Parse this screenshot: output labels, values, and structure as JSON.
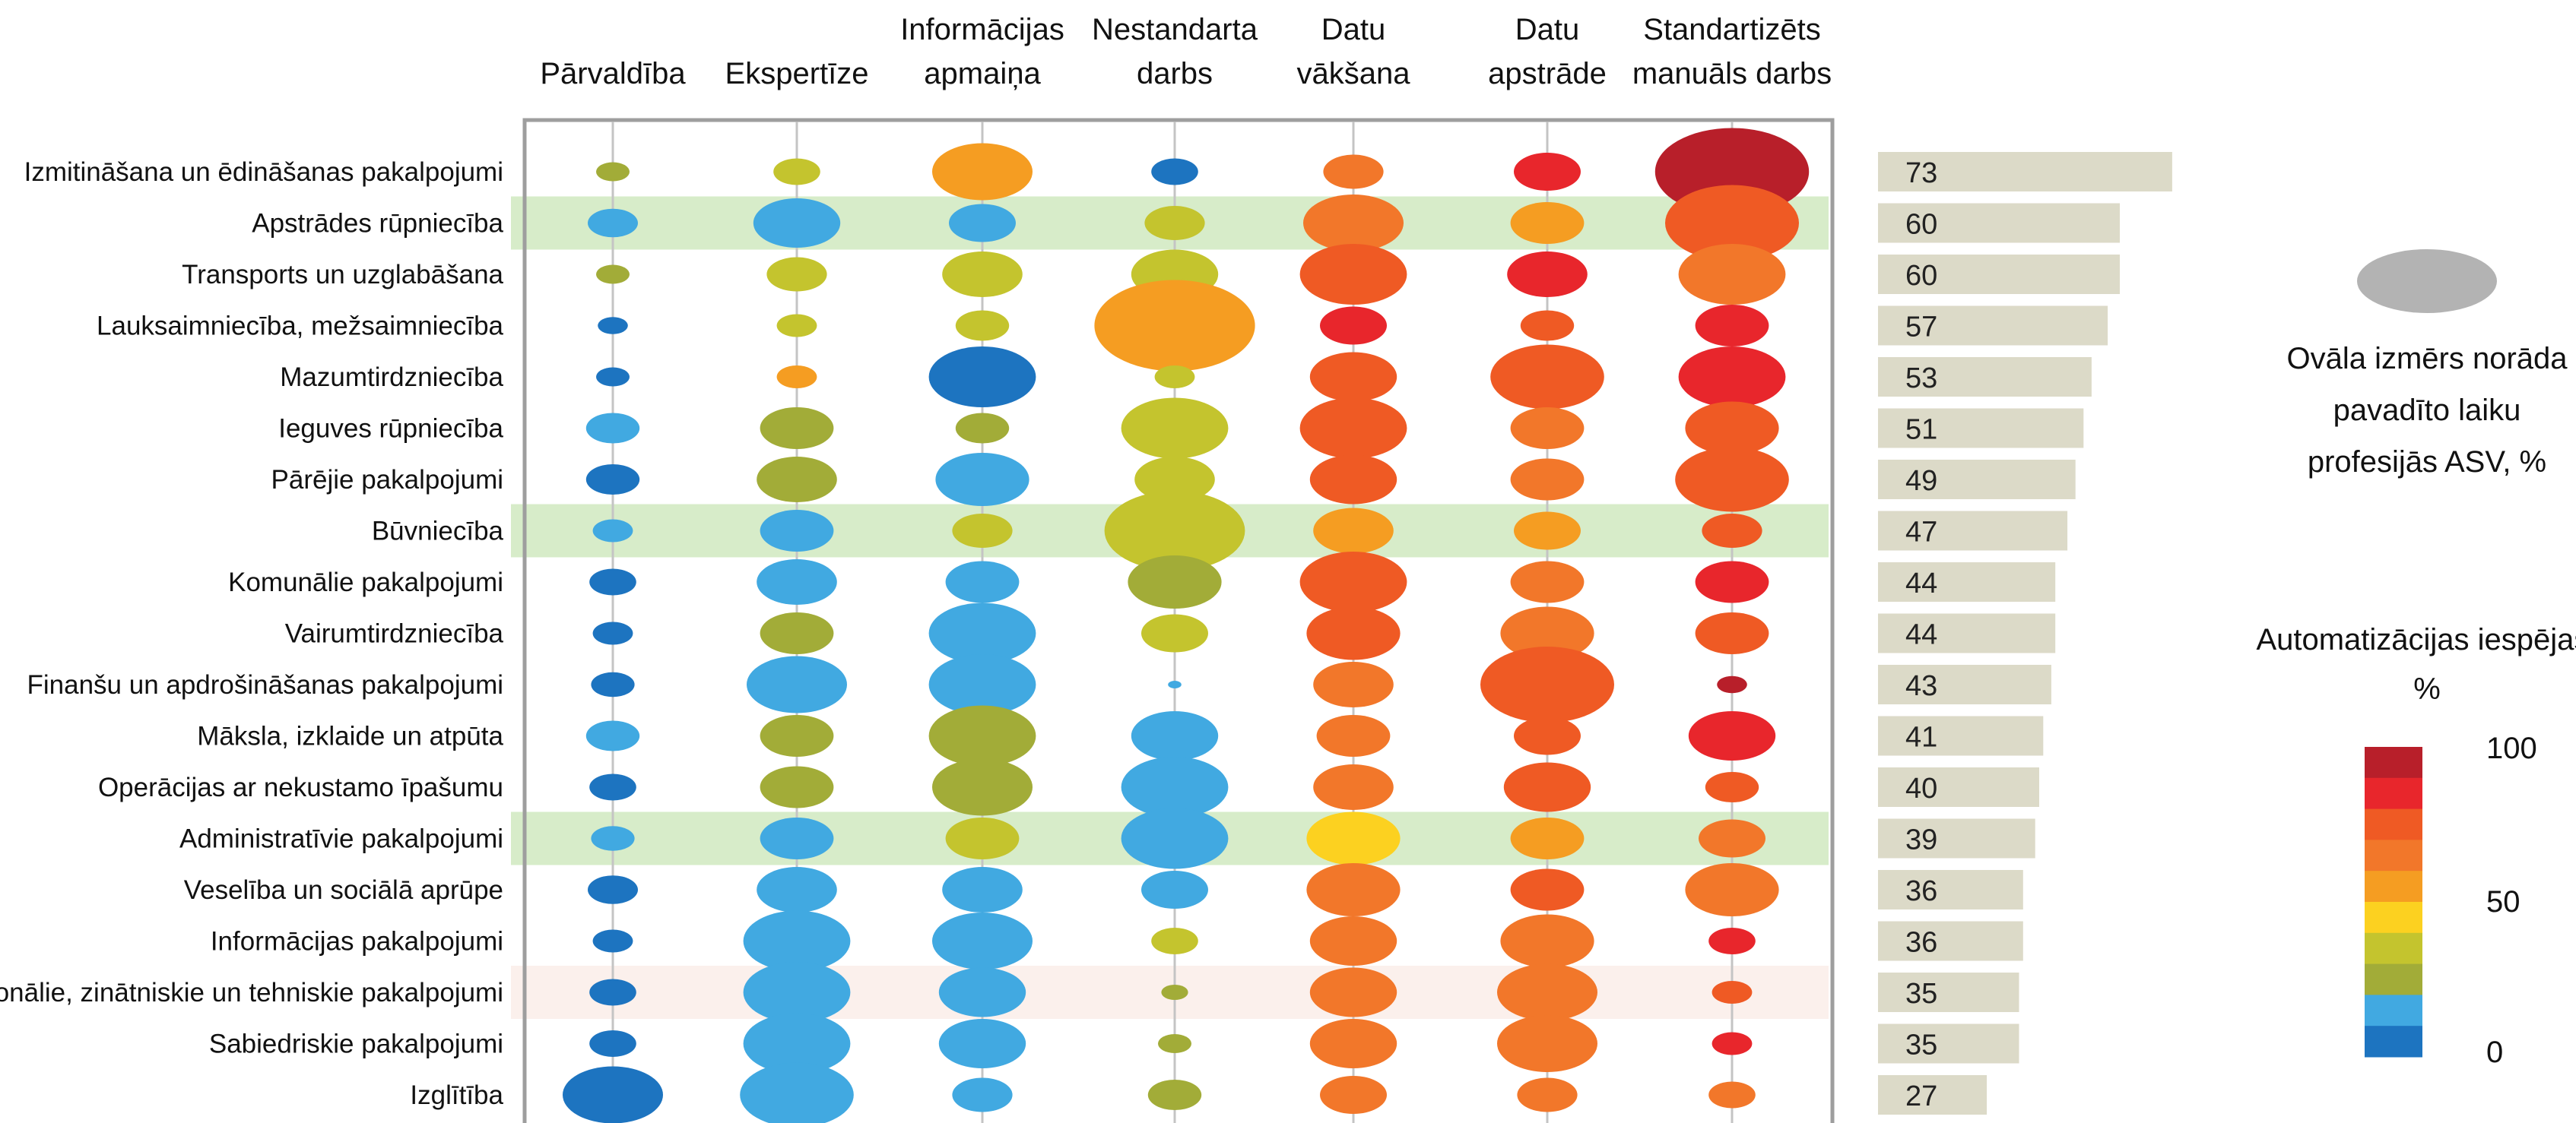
{
  "chart_data": {
    "type": "bubble-matrix",
    "columns": [
      {
        "line1": "",
        "line2": "Pārvaldība"
      },
      {
        "line1": "",
        "line2": "Ekspertīze"
      },
      {
        "line1": "Informācijas",
        "line2": "apmaiņa"
      },
      {
        "line1": "Nestandarta",
        "line2": "darbs"
      },
      {
        "line1": "Datu",
        "line2": "vākšana"
      },
      {
        "line1": "Datu",
        "line2": "apstrāde"
      },
      {
        "line1": "Standartizēts",
        "line2": "manuāls darbs"
      }
    ],
    "rows": [
      {
        "label": "Izmitināšana un ēdināšanas pakalpojumi",
        "value": 73,
        "highlight": "none",
        "cells": [
          {
            "size": 0.5,
            "auto": 30
          },
          {
            "size": 0.7,
            "auto": 40
          },
          {
            "size": 1.5,
            "auto": 55
          },
          {
            "size": 0.7,
            "auto": 5
          },
          {
            "size": 0.9,
            "auto": 70
          },
          {
            "size": 1.0,
            "auto": 85
          },
          {
            "size": 2.3,
            "auto": 95
          }
        ]
      },
      {
        "label": "Apstrādes rūpniecība",
        "value": 60,
        "highlight": "green",
        "cells": [
          {
            "size": 0.75,
            "auto": 15
          },
          {
            "size": 1.3,
            "auto": 18
          },
          {
            "size": 1.0,
            "auto": 18
          },
          {
            "size": 0.9,
            "auto": 35
          },
          {
            "size": 1.5,
            "auto": 62
          },
          {
            "size": 1.1,
            "auto": 55
          },
          {
            "size": 2.0,
            "auto": 80
          }
        ]
      },
      {
        "label": "Transports un uzglabāšana",
        "value": 60,
        "highlight": "none",
        "cells": [
          {
            "size": 0.5,
            "auto": 30
          },
          {
            "size": 0.9,
            "auto": 40
          },
          {
            "size": 1.2,
            "auto": 40
          },
          {
            "size": 1.3,
            "auto": 40
          },
          {
            "size": 1.6,
            "auto": 80
          },
          {
            "size": 1.2,
            "auto": 90
          },
          {
            "size": 1.6,
            "auto": 70
          }
        ]
      },
      {
        "label": "Lauksaimniecība, mežsaimniecība",
        "value": 57,
        "highlight": "none",
        "cells": [
          {
            "size": 0.45,
            "auto": 5
          },
          {
            "size": 0.6,
            "auto": 40
          },
          {
            "size": 0.8,
            "auto": 40
          },
          {
            "size": 2.4,
            "auto": 55
          },
          {
            "size": 1.0,
            "auto": 90
          },
          {
            "size": 0.8,
            "auto": 80
          },
          {
            "size": 1.1,
            "auto": 90
          }
        ]
      },
      {
        "label": "Mazumtirdzniecība",
        "value": 53,
        "highlight": "none",
        "cells": [
          {
            "size": 0.5,
            "auto": 5
          },
          {
            "size": 0.6,
            "auto": 55
          },
          {
            "size": 1.6,
            "auto": 5
          },
          {
            "size": 0.6,
            "auto": 40
          },
          {
            "size": 1.3,
            "auto": 80
          },
          {
            "size": 1.7,
            "auto": 80
          },
          {
            "size": 1.6,
            "auto": 90
          }
        ]
      },
      {
        "label": "Ieguves rūpniecība",
        "value": 51,
        "highlight": "none",
        "cells": [
          {
            "size": 0.8,
            "auto": 15
          },
          {
            "size": 1.1,
            "auto": 30
          },
          {
            "size": 0.8,
            "auto": 30
          },
          {
            "size": 1.6,
            "auto": 40
          },
          {
            "size": 1.6,
            "auto": 80
          },
          {
            "size": 1.1,
            "auto": 70
          },
          {
            "size": 1.4,
            "auto": 80
          }
        ]
      },
      {
        "label": "Pārējie pakalpojumi",
        "value": 49,
        "highlight": "none",
        "cells": [
          {
            "size": 0.8,
            "auto": 5
          },
          {
            "size": 1.2,
            "auto": 30
          },
          {
            "size": 1.4,
            "auto": 15
          },
          {
            "size": 1.2,
            "auto": 40
          },
          {
            "size": 1.3,
            "auto": 80
          },
          {
            "size": 1.1,
            "auto": 70
          },
          {
            "size": 1.7,
            "auto": 80
          }
        ]
      },
      {
        "label": "Būvniecība",
        "value": 47,
        "highlight": "green",
        "cells": [
          {
            "size": 0.6,
            "auto": 18
          },
          {
            "size": 1.1,
            "auto": 18
          },
          {
            "size": 0.9,
            "auto": 35
          },
          {
            "size": 2.1,
            "auto": 35
          },
          {
            "size": 1.2,
            "auto": 60
          },
          {
            "size": 1.0,
            "auto": 60
          },
          {
            "size": 0.9,
            "auto": 75
          }
        ]
      },
      {
        "label": "Komunālie pakalpojumi",
        "value": 44,
        "highlight": "none",
        "cells": [
          {
            "size": 0.7,
            "auto": 5
          },
          {
            "size": 1.2,
            "auto": 15
          },
          {
            "size": 1.1,
            "auto": 15
          },
          {
            "size": 1.4,
            "auto": 30
          },
          {
            "size": 1.6,
            "auto": 80
          },
          {
            "size": 1.1,
            "auto": 70
          },
          {
            "size": 1.1,
            "auto": 90
          }
        ]
      },
      {
        "label": "Vairumtirdzniecība",
        "value": 44,
        "highlight": "none",
        "cells": [
          {
            "size": 0.6,
            "auto": 5
          },
          {
            "size": 1.1,
            "auto": 30
          },
          {
            "size": 1.6,
            "auto": 15
          },
          {
            "size": 1.0,
            "auto": 40
          },
          {
            "size": 1.4,
            "auto": 80
          },
          {
            "size": 1.4,
            "auto": 70
          },
          {
            "size": 1.1,
            "auto": 80
          }
        ]
      },
      {
        "label": "Finanšu un apdrošināšanas pakalpojumi",
        "value": 43,
        "highlight": "none",
        "cells": [
          {
            "size": 0.65,
            "auto": 5
          },
          {
            "size": 1.5,
            "auto": 15
          },
          {
            "size": 1.6,
            "auto": 15
          },
          {
            "size": 0.2,
            "auto": 15
          },
          {
            "size": 1.2,
            "auto": 62
          },
          {
            "size": 2.0,
            "auto": 80
          },
          {
            "size": 0.45,
            "auto": 95
          }
        ]
      },
      {
        "label": "Māksla, izklaide un atpūta",
        "value": 41,
        "highlight": "none",
        "cells": [
          {
            "size": 0.8,
            "auto": 15
          },
          {
            "size": 1.1,
            "auto": 30
          },
          {
            "size": 1.6,
            "auto": 30
          },
          {
            "size": 1.3,
            "auto": 15
          },
          {
            "size": 1.1,
            "auto": 70
          },
          {
            "size": 1.0,
            "auto": 80
          },
          {
            "size": 1.3,
            "auto": 90
          }
        ]
      },
      {
        "label": "Operācijas ar nekustamo īpašumu",
        "value": 40,
        "highlight": "none",
        "cells": [
          {
            "size": 0.7,
            "auto": 5
          },
          {
            "size": 1.1,
            "auto": 30
          },
          {
            "size": 1.5,
            "auto": 30
          },
          {
            "size": 1.6,
            "auto": 15
          },
          {
            "size": 1.2,
            "auto": 70
          },
          {
            "size": 1.3,
            "auto": 80
          },
          {
            "size": 0.8,
            "auto": 80
          }
        ]
      },
      {
        "label": "Administratīvie pakalpojumi",
        "value": 39,
        "highlight": "green",
        "cells": [
          {
            "size": 0.65,
            "auto": 18
          },
          {
            "size": 1.1,
            "auto": 18
          },
          {
            "size": 1.1,
            "auto": 35
          },
          {
            "size": 1.6,
            "auto": 18
          },
          {
            "size": 1.4,
            "auto": 50
          },
          {
            "size": 1.1,
            "auto": 60
          },
          {
            "size": 1.0,
            "auto": 70
          }
        ]
      },
      {
        "label": "Veselība un sociālā aprūpe",
        "value": 36,
        "highlight": "none",
        "cells": [
          {
            "size": 0.75,
            "auto": 5
          },
          {
            "size": 1.2,
            "auto": 15
          },
          {
            "size": 1.2,
            "auto": 15
          },
          {
            "size": 1.0,
            "auto": 15
          },
          {
            "size": 1.4,
            "auto": 62
          },
          {
            "size": 1.1,
            "auto": 80
          },
          {
            "size": 1.4,
            "auto": 62
          }
        ]
      },
      {
        "label": "Informācijas pakalpojumi",
        "value": 36,
        "highlight": "none",
        "cells": [
          {
            "size": 0.6,
            "auto": 5
          },
          {
            "size": 1.6,
            "auto": 15
          },
          {
            "size": 1.5,
            "auto": 15
          },
          {
            "size": 0.7,
            "auto": 40
          },
          {
            "size": 1.3,
            "auto": 70
          },
          {
            "size": 1.4,
            "auto": 62
          },
          {
            "size": 0.7,
            "auto": 90
          }
        ]
      },
      {
        "label": "Profesionālie, zinātniskie un tehniskie pakalpojumi",
        "value": 35,
        "highlight": "pink",
        "cells": [
          {
            "size": 0.7,
            "auto": 8
          },
          {
            "size": 1.6,
            "auto": 15
          },
          {
            "size": 1.3,
            "auto": 15
          },
          {
            "size": 0.4,
            "auto": 30
          },
          {
            "size": 1.3,
            "auto": 62
          },
          {
            "size": 1.5,
            "auto": 62
          },
          {
            "size": 0.6,
            "auto": 80
          }
        ]
      },
      {
        "label": "Sabiedriskie pakalpojumi",
        "value": 35,
        "highlight": "none",
        "cells": [
          {
            "size": 0.7,
            "auto": 5
          },
          {
            "size": 1.6,
            "auto": 15
          },
          {
            "size": 1.3,
            "auto": 15
          },
          {
            "size": 0.5,
            "auto": 30
          },
          {
            "size": 1.3,
            "auto": 62
          },
          {
            "size": 1.5,
            "auto": 62
          },
          {
            "size": 0.6,
            "auto": 90
          }
        ]
      },
      {
        "label": "Izglītība",
        "value": 27,
        "highlight": "none",
        "cells": [
          {
            "size": 1.5,
            "auto": 5
          },
          {
            "size": 1.7,
            "auto": 15
          },
          {
            "size": 0.9,
            "auto": 15
          },
          {
            "size": 0.8,
            "auto": 30
          },
          {
            "size": 1.0,
            "auto": 62
          },
          {
            "size": 0.9,
            "auto": 70
          },
          {
            "size": 0.7,
            "auto": 70
          }
        ]
      }
    ],
    "bar_range": [
      0,
      100
    ],
    "legend": {
      "size_text": [
        "Ovāla izmērs norāda",
        "pavadīto laiku",
        "profesijās ASV, %"
      ],
      "color_title": [
        "Automatizācijas iespējas,",
        "%"
      ],
      "scale_labels": [
        "100",
        "50",
        "0"
      ],
      "scale_colors": [
        "#B81F2A",
        "#E8262C",
        "#EF5A24",
        "#F2772A",
        "#F59D22",
        "#FCD120",
        "#C4C42E",
        "#A2AC38",
        "#41A9E1",
        "#1D74C0"
      ]
    }
  }
}
